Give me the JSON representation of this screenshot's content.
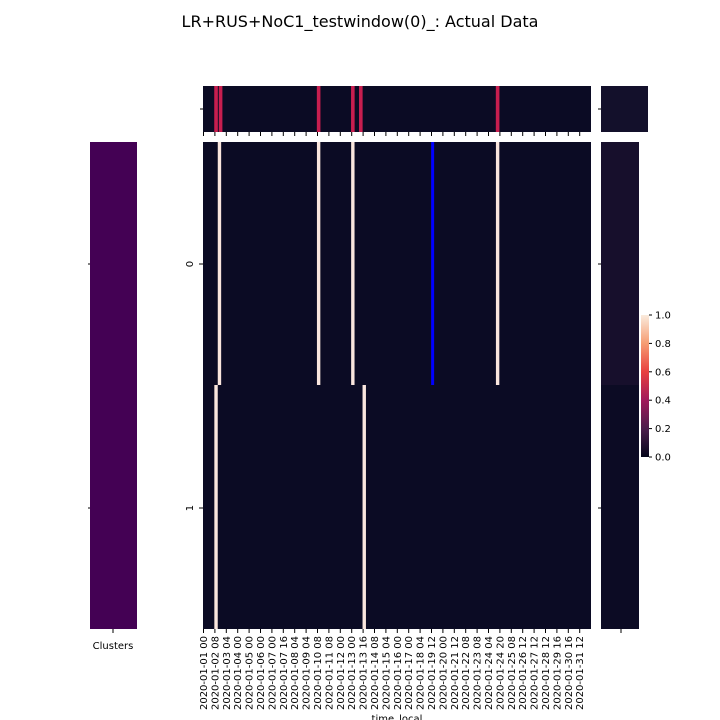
{
  "title": "LR+RUS+NoC1_testwindow(0)_: Actual Data",
  "chart_data": {
    "type": "heatmap",
    "title": "LR+RUS+NoC1_testwindow(0)_: Actual Data",
    "xlabel": "time_local",
    "ylabel": "",
    "row_labels": [
      "0",
      "1"
    ],
    "x_tick_labels": [
      "2020-01-01 00",
      "2020-01-02 08",
      "2020-01-03 04",
      "2020-01-04 00",
      "2020-01-05 00",
      "2020-01-06 00",
      "2020-01-07 00",
      "2020-01-07 16",
      "2020-01-08 04",
      "2020-01-09 04",
      "2020-01-10 08",
      "2020-01-11 08",
      "2020-01-12 00",
      "2020-01-13 00",
      "2020-01-13 16",
      "2020-01-14 08",
      "2020-01-15 04",
      "2020-01-16 00",
      "2020-01-17 00",
      "2020-01-18 04",
      "2020-01-19 12",
      "2020-01-20 00",
      "2020-01-21 12",
      "2020-01-22 08",
      "2020-01-23 08",
      "2020-01-24 04",
      "2020-01-24 20",
      "2020-01-25 08",
      "2020-01-26 12",
      "2020-01-27 12",
      "2020-01-28 12",
      "2020-01-29 16",
      "2020-01-30 16",
      "2020-01-31 12"
    ],
    "clusters_label": "Clusters",
    "colorbar": {
      "min": 0.0,
      "max": 1.0,
      "ticks": [
        "0.0",
        "0.2",
        "0.4",
        "0.6",
        "0.8",
        "1.0"
      ]
    },
    "colors": {
      "background_cell": "#0b0b24",
      "high_value": "#fae6de",
      "mid_value": "#c81e4f",
      "flag_blue": "#0000ff",
      "cluster": "#440154"
    },
    "series": [
      {
        "row": "0",
        "high_at_tick_index": [
          1.4,
          10.1,
          13.1,
          25.8
        ],
        "blue_at_tick_index": [
          20.1
        ]
      },
      {
        "row": "1",
        "high_at_tick_index": [
          1.1,
          14.1
        ]
      }
    ],
    "top_strip_highlights_at_tick_index": [
      1.1,
      1.5,
      10.1,
      13.1,
      13.8,
      25.8
    ],
    "side_strip_values": [
      0.12,
      0.06
    ]
  }
}
